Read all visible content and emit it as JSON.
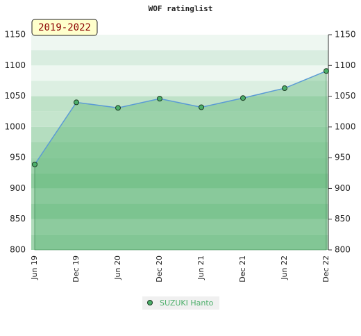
{
  "chart_data": {
    "type": "line",
    "title": "WOF ratinglist",
    "annotation": "2019-2022",
    "categories": [
      "Jun 19",
      "Dec 19",
      "Jun 20",
      "Dec 20",
      "Jun 21",
      "Dec 21",
      "Jun 22",
      "Dec 22"
    ],
    "series": [
      {
        "name": "SUZUKI Hanto",
        "color": "#5b9bd5",
        "marker_color": "#4caf6a",
        "values": [
          939,
          1040,
          1031,
          1046,
          1032,
          1047,
          1063,
          1091
        ]
      }
    ],
    "ylim": [
      800,
      1150
    ],
    "yticks": [
      800,
      850,
      900,
      950,
      1000,
      1050,
      1100,
      1150
    ],
    "area": true,
    "legend": "bottom"
  }
}
